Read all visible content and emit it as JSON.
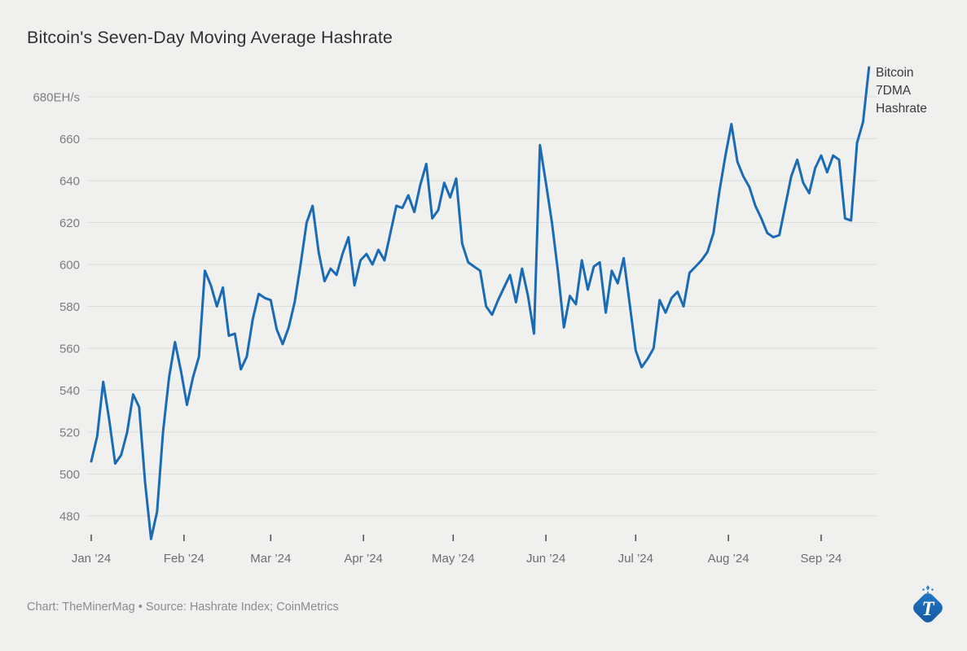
{
  "header": {
    "title": "Bitcoin's Seven-Day Moving Average Hashrate"
  },
  "legend": {
    "lines": [
      "Bitcoin",
      "7DMA",
      "Hashrate"
    ]
  },
  "footer": {
    "credit": "Chart: TheMinerMag • Source: Hashrate Index; CoinMetrics"
  },
  "logo": {
    "letter": "T"
  },
  "colors": {
    "background": "#f0f0ee",
    "line": "#1a6bb5",
    "grid": "#dbdbd9",
    "axis_label": "#7d7d7d",
    "month_label": "#6e6e6e",
    "tick_mark": "#4a4a4a",
    "title_text": "#313131",
    "legend_text": "#3a3a3a",
    "footer_text": "#8c8c8c",
    "logo_blue_light": "#2178c8",
    "logo_blue_dark": "#14589e"
  },
  "chart_data": {
    "type": "line",
    "title": "Bitcoin's Seven-Day Moving Average Hashrate",
    "grid": "horizontal",
    "legend_position": "top-right",
    "y_axis": {
      "unit": "EH/s",
      "top_label": "680EH/s",
      "ticks": [
        680,
        660,
        640,
        620,
        600,
        580,
        560,
        540,
        520,
        500,
        480
      ],
      "ylim": [
        469,
        694
      ]
    },
    "x_axis": {
      "tick_labels": [
        "Jan ’24",
        "Feb ’24",
        "Mar ’24",
        "Apr ’24",
        "May ’24",
        "Jun ’24",
        "Jul ’24",
        "Aug ’24",
        "Sep ’24"
      ],
      "tick_days": [
        0,
        31,
        60,
        91,
        121,
        152,
        182,
        213,
        244
      ]
    },
    "series": [
      {
        "name": "Bitcoin 7DMA Hashrate",
        "unit": "EH/s",
        "start_label": "Jan ’24",
        "sample_interval_days": 2,
        "values": [
          506,
          518,
          544,
          526,
          505,
          509,
          520,
          538,
          532,
          496,
          469,
          482,
          520,
          546,
          563,
          549,
          533,
          546,
          556,
          597,
          590,
          580,
          589,
          566,
          567,
          550,
          556,
          574,
          586,
          584,
          583,
          569,
          562,
          570,
          582,
          600,
          620,
          628,
          606,
          592,
          598,
          595,
          605,
          613,
          590,
          602,
          605,
          600,
          607,
          602,
          615,
          628,
          627,
          633,
          625,
          638,
          648,
          622,
          626,
          639,
          632,
          641,
          610,
          601,
          599,
          597,
          580,
          576,
          583,
          589,
          595,
          582,
          598,
          585,
          567,
          657,
          639,
          620,
          597,
          570,
          585,
          581,
          602,
          588,
          599,
          601,
          577,
          597,
          591,
          603,
          581,
          559,
          551,
          555,
          560,
          583,
          577,
          584,
          587,
          580,
          596,
          599,
          602,
          606,
          615,
          635,
          652,
          667,
          649,
          642,
          637,
          628,
          622,
          615,
          613,
          614,
          628,
          642,
          650,
          639,
          634,
          646,
          652,
          644,
          652,
          650,
          622,
          621,
          658,
          668,
          694
        ]
      }
    ]
  }
}
